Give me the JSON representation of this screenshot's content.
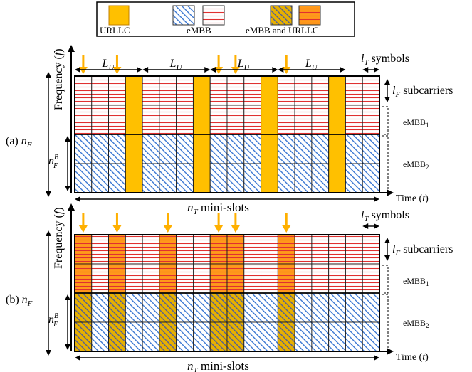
{
  "legend": {
    "urllc": "URLLC",
    "embb": "eMBB",
    "embb_and_urllc": "eMBB and URLLC"
  },
  "colors": {
    "urllc_fill": "#FFC000",
    "urllc_border": "#C08000",
    "embb1_line": "#E03030",
    "embb1_bg": "#FFFFFF",
    "embb2_line": "#2F6FD0",
    "embb2_bg": "#FFFFFF",
    "overlap_red_bg": "#FF9A1A",
    "overlap_blue_bg": "#E6B000",
    "overlap_blue_line": "#4A5AA0",
    "arrow": "#FFB000",
    "grid": "#1A1A1A"
  },
  "panels": [
    {
      "id": "a",
      "label_prefix": "(a)",
      "n_mini_slots": 18,
      "n_rows": 4,
      "embb1_rows": 2,
      "urllc_slots": [
        3,
        7,
        11,
        15
      ],
      "arrow_slots": [
        0,
        2,
        8,
        9,
        12
      ],
      "show_LU_braces": true,
      "LU_label": "L",
      "LU_sub": "U"
    },
    {
      "id": "b",
      "label_prefix": "(b)",
      "n_mini_slots": 18,
      "n_rows": 4,
      "embb1_rows": 2,
      "urllc_slots": [
        0,
        2,
        5,
        8,
        9,
        12
      ],
      "arrow_slots": [
        0,
        2,
        5,
        8,
        9,
        12
      ],
      "show_LU_braces": false
    }
  ],
  "labels": {
    "frequency": "Frequency",
    "f": "f",
    "time": "Time",
    "t": "t",
    "n": "n",
    "F": "F",
    "B": "B",
    "T": "T",
    "mini_slots": "mini-slots",
    "l": "l",
    "symbols": "symbols",
    "subcarriers": "subcarriers",
    "embb": "eMBB",
    "one": "1",
    "two": "2"
  }
}
